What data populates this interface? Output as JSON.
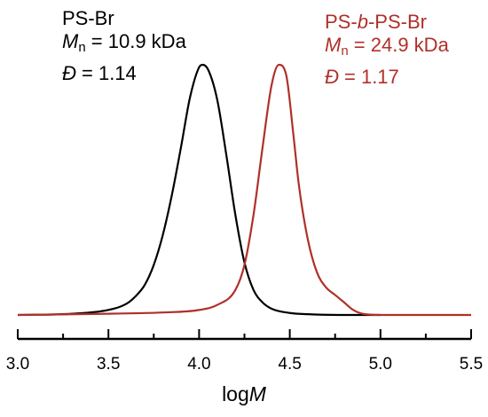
{
  "chart_data": {
    "type": "line",
    "xlabel": {
      "prefix": "log",
      "italic": "M"
    },
    "xlim": [
      3.0,
      5.5
    ],
    "ylim": [
      0,
      1.0
    ],
    "x_ticks_major": [
      "3.0",
      "3.5",
      "4.0",
      "4.5",
      "5.0",
      "5.5"
    ],
    "x_ticks_minor": [
      3.25,
      3.75,
      4.25,
      4.75,
      5.25
    ],
    "grid": false,
    "legend": "none",
    "series": [
      {
        "color": "#000000",
        "x": [
          3.0,
          3.3,
          3.5,
          3.6,
          3.65,
          3.7,
          3.75,
          3.8,
          3.85,
          3.9,
          3.95,
          4.0,
          4.02,
          4.05,
          4.1,
          4.15,
          4.2,
          4.25,
          4.3,
          4.35,
          4.4,
          4.5,
          4.6,
          4.8,
          5.0
        ],
        "values": [
          0.0,
          0.005,
          0.02,
          0.045,
          0.075,
          0.12,
          0.2,
          0.32,
          0.48,
          0.67,
          0.87,
          0.99,
          1.0,
          0.98,
          0.86,
          0.64,
          0.4,
          0.21,
          0.1,
          0.05,
          0.025,
          0.008,
          0.003,
          0.0,
          0.0
        ]
      },
      {
        "color": "#b0302a",
        "x": [
          3.0,
          3.5,
          3.8,
          4.0,
          4.1,
          4.2,
          4.25,
          4.3,
          4.35,
          4.4,
          4.44,
          4.48,
          4.52,
          4.55,
          4.6,
          4.65,
          4.7,
          4.75,
          4.8,
          4.85,
          4.9,
          5.0,
          5.5
        ],
        "values": [
          0.0,
          0.005,
          0.01,
          0.02,
          0.04,
          0.1,
          0.2,
          0.4,
          0.67,
          0.92,
          1.0,
          0.96,
          0.72,
          0.52,
          0.3,
          0.17,
          0.11,
          0.08,
          0.05,
          0.02,
          0.005,
          0.0,
          0.0
        ]
      }
    ],
    "annotations": {
      "black": {
        "name": "PS-Br",
        "mn_sym": "M",
        "mn_sub": "n",
        "mn_val": " = 10.9 kDa",
        "d_sym": "Đ",
        "d_val": " = 1.14"
      },
      "red": {
        "name_a": "PS-",
        "name_b": "b",
        "name_c": "-PS-Br",
        "mn_sym": "M",
        "mn_sub": "n",
        "mn_val": " = 24.9 kDa",
        "d_sym": "Đ",
        "d_val": " = 1.17"
      }
    }
  }
}
